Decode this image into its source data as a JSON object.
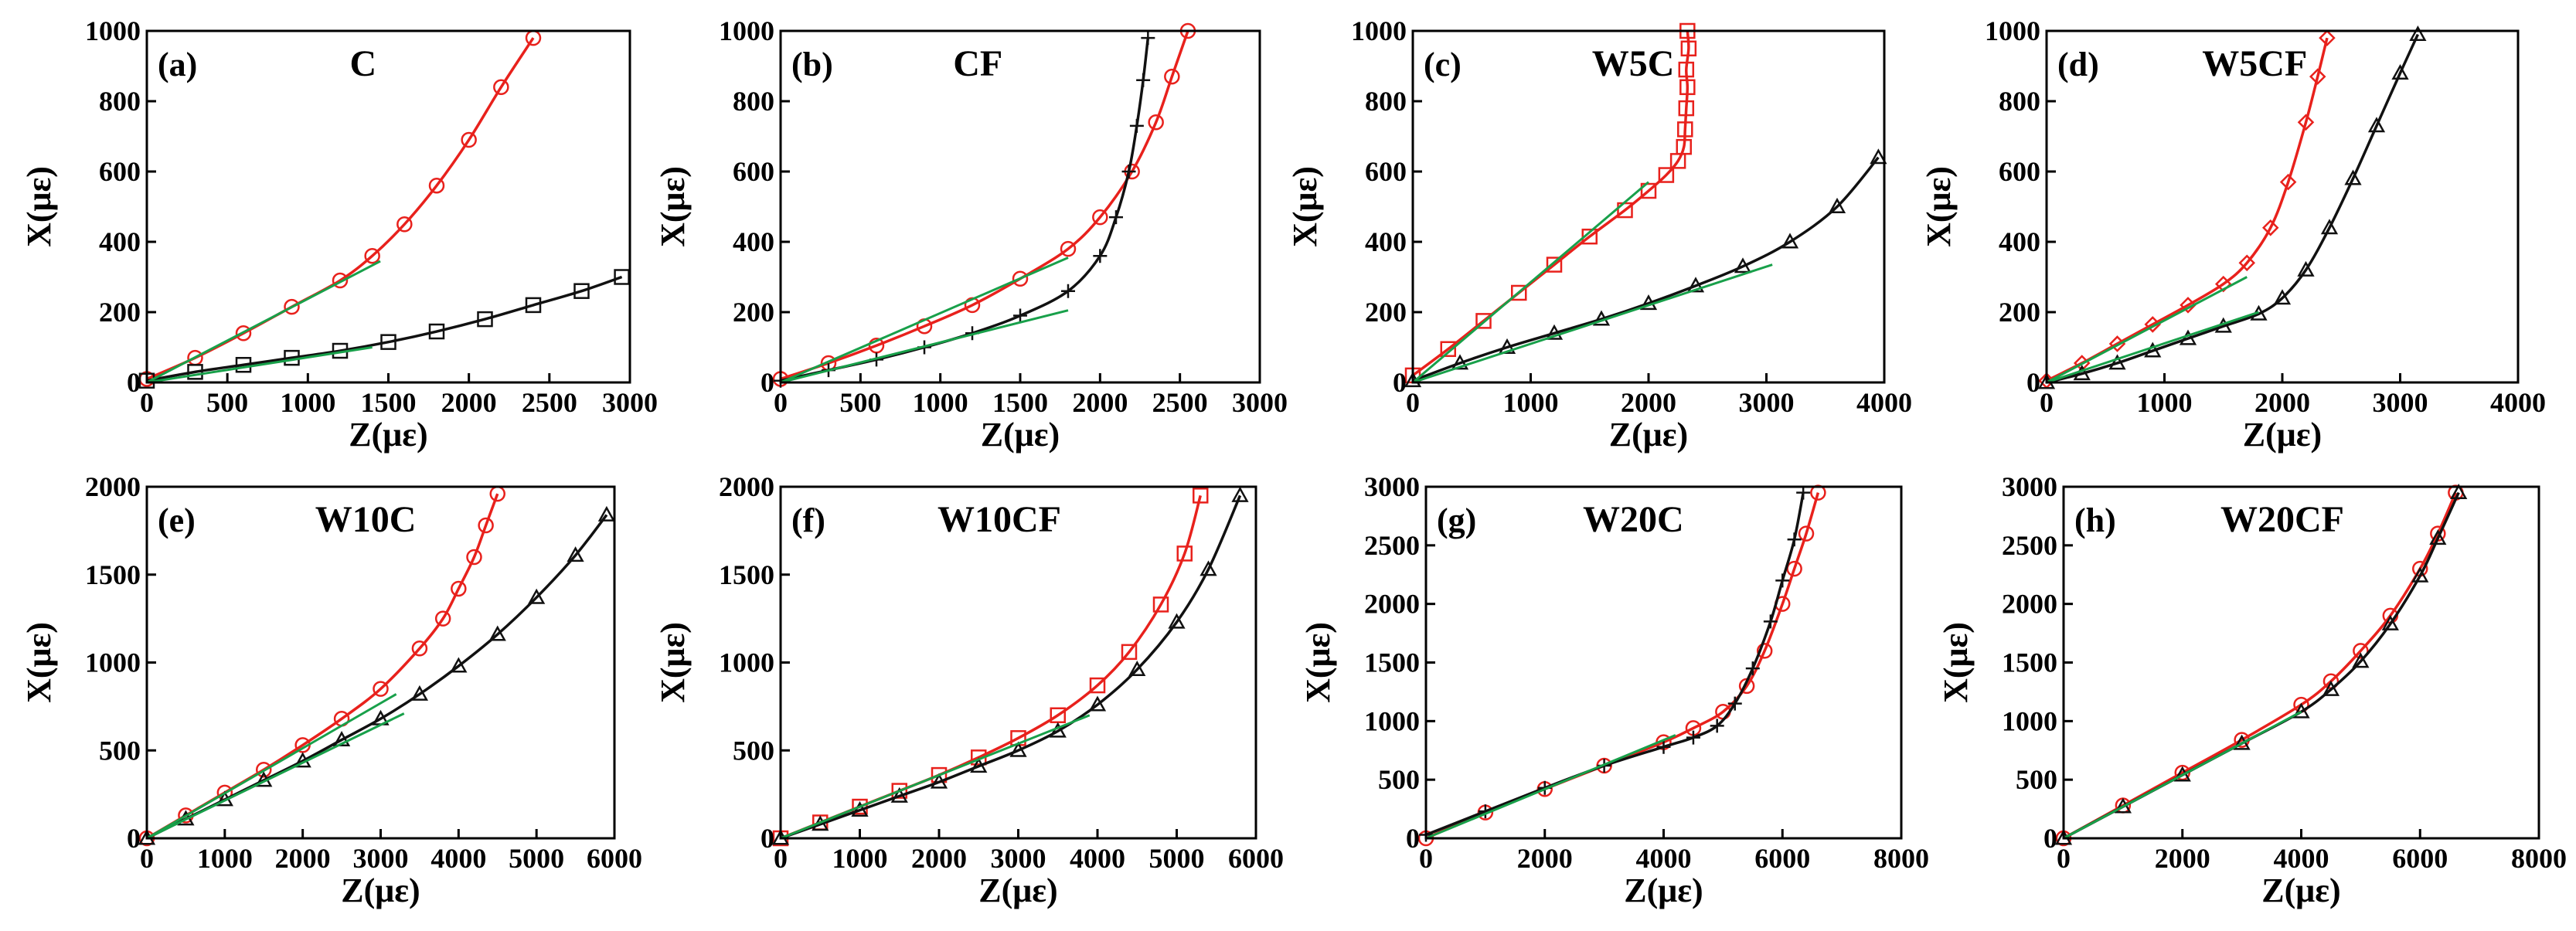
{
  "figure": {
    "colors": {
      "red": "#e8211c",
      "black": "#111111",
      "green": "#18a04a"
    }
  },
  "chart_data": [
    {
      "type": "line",
      "panel": "(a)",
      "title": "C",
      "xlabel": "Z(με)",
      "ylabel": "X(με)",
      "xlim": [
        0,
        3000
      ],
      "ylim": [
        0,
        1000
      ],
      "xticks": [
        "0",
        "500",
        "1000",
        "1500",
        "2000",
        "2500",
        "3000"
      ],
      "yticks": [
        "0",
        "200",
        "400",
        "600",
        "800",
        "1000"
      ],
      "series": [
        {
          "name": "red curve",
          "color": "#e8211c",
          "marker": "circle",
          "x": [
            0,
            300,
            600,
            900,
            1200,
            1400,
            1600,
            1800,
            2000,
            2200,
            2400
          ],
          "y": [
            10,
            70,
            140,
            215,
            290,
            360,
            450,
            560,
            690,
            840,
            980
          ]
        },
        {
          "name": "black curve",
          "color": "#111111",
          "marker": "square",
          "x": [
            0,
            300,
            600,
            900,
            1200,
            1500,
            1800,
            2100,
            2400,
            2700,
            2950
          ],
          "y": [
            5,
            30,
            50,
            70,
            90,
            115,
            145,
            180,
            220,
            260,
            300
          ]
        },
        {
          "name": "linear fit 1",
          "color": "#18a04a",
          "marker": "none",
          "x": [
            0,
            1450
          ],
          "y": [
            0,
            345
          ]
        },
        {
          "name": "linear fit 2",
          "color": "#18a04a",
          "marker": "none",
          "x": [
            0,
            1400
          ],
          "y": [
            0,
            100
          ]
        }
      ]
    },
    {
      "type": "line",
      "panel": "(b)",
      "title": "CF",
      "xlabel": "Z(με)",
      "ylabel": "X(με)",
      "xlim": [
        0,
        3000
      ],
      "ylim": [
        0,
        1000
      ],
      "xticks": [
        "0",
        "500",
        "1000",
        "1500",
        "2000",
        "2500",
        "3000"
      ],
      "yticks": [
        "0",
        "200",
        "400",
        "600",
        "800",
        "1000"
      ],
      "series": [
        {
          "name": "red curve",
          "color": "#e8211c",
          "marker": "circle",
          "x": [
            0,
            300,
            600,
            900,
            1200,
            1500,
            1800,
            2000,
            2200,
            2350,
            2450,
            2550
          ],
          "y": [
            10,
            55,
            105,
            160,
            220,
            295,
            380,
            470,
            600,
            740,
            870,
            1000
          ]
        },
        {
          "name": "black curve",
          "color": "#111111",
          "marker": "cross",
          "x": [
            0,
            300,
            600,
            900,
            1200,
            1500,
            1800,
            2000,
            2100,
            2180,
            2230,
            2270,
            2300
          ],
          "y": [
            5,
            35,
            65,
            100,
            140,
            190,
            260,
            360,
            470,
            600,
            730,
            860,
            980
          ]
        },
        {
          "name": "linear fit 1",
          "color": "#18a04a",
          "marker": "none",
          "x": [
            0,
            1800
          ],
          "y": [
            0,
            355
          ]
        },
        {
          "name": "linear fit 2",
          "color": "#18a04a",
          "marker": "none",
          "x": [
            0,
            1800
          ],
          "y": [
            0,
            205
          ]
        }
      ]
    },
    {
      "type": "line",
      "panel": "(c)",
      "title": "W5C",
      "xlabel": "Z(με)",
      "ylabel": "X(με)",
      "xlim": [
        0,
        4000
      ],
      "ylim": [
        0,
        1000
      ],
      "xticks": [
        "0",
        "1000",
        "2000",
        "3000",
        "4000"
      ],
      "yticks": [
        "0",
        "200",
        "400",
        "600",
        "800",
        "1000"
      ],
      "series": [
        {
          "name": "red curve",
          "color": "#e8211c",
          "marker": "square",
          "x": [
            0,
            300,
            600,
            900,
            1200,
            1500,
            1800,
            2000,
            2150,
            2250,
            2300,
            2310,
            2320,
            2330,
            2320,
            2340,
            2330
          ],
          "y": [
            20,
            95,
            175,
            255,
            335,
            415,
            490,
            545,
            590,
            630,
            670,
            720,
            780,
            840,
            890,
            950,
            1000
          ]
        },
        {
          "name": "black curve",
          "color": "#111111",
          "marker": "triangle",
          "x": [
            0,
            400,
            800,
            1200,
            1600,
            2000,
            2400,
            2800,
            3200,
            3600,
            3950
          ],
          "y": [
            5,
            55,
            100,
            140,
            180,
            225,
            275,
            330,
            400,
            500,
            640
          ]
        },
        {
          "name": "linear fit 1",
          "color": "#18a04a",
          "marker": "none",
          "x": [
            0,
            2000
          ],
          "y": [
            0,
            570
          ]
        },
        {
          "name": "linear fit 2",
          "color": "#18a04a",
          "marker": "none",
          "x": [
            0,
            3050
          ],
          "y": [
            0,
            335
          ]
        }
      ]
    },
    {
      "type": "line",
      "panel": "(d)",
      "title": "W5CF",
      "xlabel": "Z(με)",
      "ylabel": "X(με)",
      "xlim": [
        0,
        4000
      ],
      "ylim": [
        0,
        1000
      ],
      "xticks": [
        "0",
        "1000",
        "2000",
        "3000",
        "4000"
      ],
      "yticks": [
        "0",
        "200",
        "400",
        "600",
        "800",
        "1000"
      ],
      "series": [
        {
          "name": "red curve",
          "color": "#e8211c",
          "marker": "diamond",
          "x": [
            0,
            300,
            600,
            900,
            1200,
            1500,
            1700,
            1900,
            2050,
            2200,
            2300,
            2380
          ],
          "y": [
            5,
            55,
            110,
            165,
            220,
            280,
            340,
            440,
            570,
            740,
            870,
            980
          ]
        },
        {
          "name": "black curve",
          "color": "#111111",
          "marker": "triangle",
          "x": [
            0,
            300,
            600,
            900,
            1200,
            1500,
            1800,
            2000,
            2200,
            2400,
            2600,
            2800,
            3000,
            3150
          ],
          "y": [
            0,
            25,
            55,
            90,
            125,
            160,
            195,
            240,
            320,
            440,
            580,
            730,
            880,
            990
          ]
        },
        {
          "name": "linear fit 1",
          "color": "#18a04a",
          "marker": "none",
          "x": [
            0,
            1700
          ],
          "y": [
            0,
            300
          ]
        },
        {
          "name": "linear fit 2",
          "color": "#18a04a",
          "marker": "none",
          "x": [
            0,
            1800
          ],
          "y": [
            0,
            200
          ]
        }
      ]
    },
    {
      "type": "line",
      "panel": "(e)",
      "title": "W10C",
      "xlabel": "Z(με)",
      "ylabel": "X(με)",
      "xlim": [
        0,
        6000
      ],
      "ylim": [
        0,
        2000
      ],
      "xticks": [
        "0",
        "1000",
        "2000",
        "3000",
        "4000",
        "5000",
        "6000"
      ],
      "yticks": [
        "0",
        "500",
        "1000",
        "1500",
        "2000"
      ],
      "series": [
        {
          "name": "red curve",
          "color": "#e8211c",
          "marker": "circle",
          "x": [
            0,
            500,
            1000,
            1500,
            2000,
            2500,
            3000,
            3500,
            3800,
            4000,
            4200,
            4350,
            4500
          ],
          "y": [
            0,
            130,
            260,
            390,
            530,
            680,
            850,
            1080,
            1250,
            1420,
            1600,
            1780,
            1960
          ]
        },
        {
          "name": "black curve",
          "color": "#111111",
          "marker": "triangle",
          "x": [
            0,
            500,
            1000,
            1500,
            2000,
            2500,
            3000,
            3500,
            4000,
            4500,
            5000,
            5500,
            5900
          ],
          "y": [
            0,
            110,
            220,
            330,
            440,
            560,
            680,
            820,
            980,
            1160,
            1370,
            1610,
            1840
          ]
        },
        {
          "name": "linear fit 1",
          "color": "#18a04a",
          "marker": "none",
          "x": [
            0,
            3200
          ],
          "y": [
            0,
            820
          ]
        },
        {
          "name": "linear fit 2",
          "color": "#18a04a",
          "marker": "none",
          "x": [
            0,
            3300
          ],
          "y": [
            0,
            710
          ]
        }
      ]
    },
    {
      "type": "line",
      "panel": "(f)",
      "title": "W10CF",
      "xlabel": "Z(με)",
      "ylabel": "X(με)",
      "xlim": [
        0,
        6000
      ],
      "ylim": [
        0,
        2000
      ],
      "xticks": [
        "0",
        "1000",
        "2000",
        "3000",
        "4000",
        "5000",
        "6000"
      ],
      "yticks": [
        "0",
        "500",
        "1000",
        "1500",
        "2000"
      ],
      "series": [
        {
          "name": "red curve",
          "color": "#e8211c",
          "marker": "square",
          "x": [
            0,
            500,
            1000,
            1500,
            2000,
            2500,
            3000,
            3500,
            4000,
            4400,
            4800,
            5100,
            5300
          ],
          "y": [
            0,
            90,
            180,
            270,
            360,
            460,
            570,
            700,
            870,
            1060,
            1330,
            1620,
            1950
          ]
        },
        {
          "name": "black curve",
          "color": "#111111",
          "marker": "triangle",
          "x": [
            0,
            500,
            1000,
            1500,
            2000,
            2500,
            3000,
            3500,
            4000,
            4500,
            5000,
            5400,
            5800
          ],
          "y": [
            0,
            80,
            160,
            240,
            320,
            410,
            500,
            610,
            760,
            960,
            1230,
            1530,
            1950
          ]
        },
        {
          "name": "linear fit 1",
          "color": "#18a04a",
          "marker": "none",
          "x": [
            0,
            3900
          ],
          "y": [
            0,
            700
          ]
        }
      ]
    },
    {
      "type": "line",
      "panel": "(g)",
      "title": "W20C",
      "xlabel": "Z(με)",
      "ylabel": "X(με)",
      "xlim": [
        0,
        8000
      ],
      "ylim": [
        0,
        3000
      ],
      "xticks": [
        "0",
        "2000",
        "4000",
        "6000",
        "8000"
      ],
      "yticks": [
        "0",
        "500",
        "1000",
        "1500",
        "2000",
        "2500",
        "3000"
      ],
      "series": [
        {
          "name": "red curve",
          "color": "#e8211c",
          "marker": "circle",
          "x": [
            0,
            1000,
            2000,
            3000,
            4000,
            4500,
            5000,
            5400,
            5700,
            6000,
            6200,
            6400,
            6600
          ],
          "y": [
            0,
            220,
            420,
            620,
            820,
            940,
            1080,
            1300,
            1600,
            2000,
            2300,
            2600,
            2950
          ]
        },
        {
          "name": "black curve",
          "color": "#111111",
          "marker": "cross",
          "x": [
            0,
            1000,
            2000,
            3000,
            4000,
            4500,
            4900,
            5200,
            5500,
            5800,
            6000,
            6200,
            6350
          ],
          "y": [
            30,
            230,
            430,
            620,
            780,
            860,
            960,
            1150,
            1450,
            1850,
            2200,
            2550,
            2950
          ]
        },
        {
          "name": "linear fit",
          "color": "#18a04a",
          "marker": "none",
          "x": [
            0,
            4200
          ],
          "y": [
            0,
            880
          ]
        }
      ]
    },
    {
      "type": "line",
      "panel": "(h)",
      "title": "W20CF",
      "xlabel": "Z(με)",
      "ylabel": "X(με)",
      "xlim": [
        0,
        8000
      ],
      "ylim": [
        0,
        3000
      ],
      "xticks": [
        "0",
        "2000",
        "4000",
        "6000",
        "8000"
      ],
      "yticks": [
        "0",
        "500",
        "1000",
        "1500",
        "2000",
        "2500",
        "3000"
      ],
      "series": [
        {
          "name": "red curve",
          "color": "#e8211c",
          "marker": "circle",
          "x": [
            0,
            1000,
            2000,
            3000,
            4000,
            4500,
            5000,
            5500,
            6000,
            6300,
            6600
          ],
          "y": [
            0,
            280,
            560,
            840,
            1140,
            1340,
            1600,
            1900,
            2300,
            2600,
            2950
          ]
        },
        {
          "name": "black curve",
          "color": "#111111",
          "marker": "triangle",
          "x": [
            0,
            1000,
            2000,
            3000,
            4000,
            4500,
            5000,
            5500,
            6000,
            6300,
            6650
          ],
          "y": [
            0,
            270,
            540,
            810,
            1080,
            1270,
            1510,
            1830,
            2240,
            2560,
            2950
          ]
        },
        {
          "name": "linear fit",
          "color": "#18a04a",
          "marker": "none",
          "x": [
            0,
            4000
          ],
          "y": [
            0,
            1080
          ]
        }
      ]
    }
  ]
}
